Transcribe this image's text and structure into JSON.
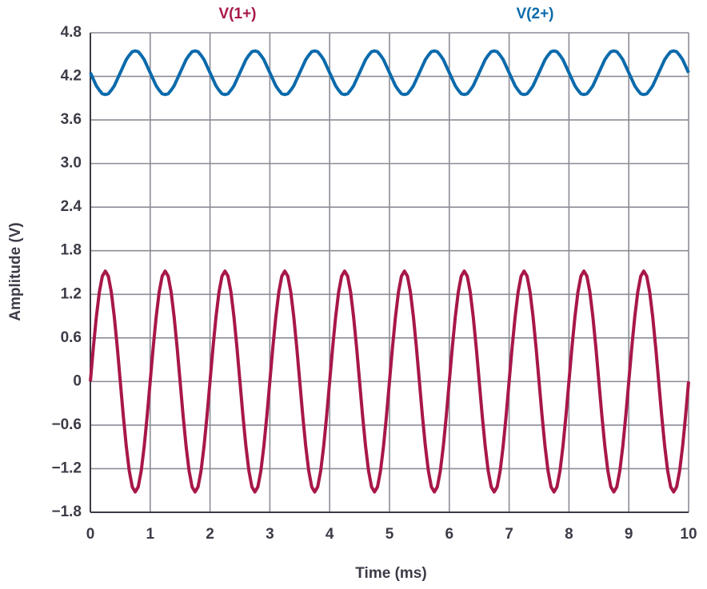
{
  "chart_data": {
    "type": "line",
    "xlabel": "Time (ms)",
    "ylabel": "Amplitude (V)",
    "x": [
      0,
      0.05,
      0.1,
      0.15,
      0.2,
      0.25,
      0.3,
      0.35,
      0.4,
      0.45,
      0.5,
      0.55,
      0.6,
      0.65,
      0.7,
      0.75,
      0.8,
      0.85,
      0.9,
      0.95,
      1,
      1.05,
      1.1,
      1.15,
      1.2,
      1.25,
      1.3,
      1.35,
      1.4,
      1.45,
      1.5,
      1.55,
      1.6,
      1.65,
      1.7,
      1.75,
      1.8,
      1.85,
      1.9,
      1.95,
      2,
      2.05,
      2.1,
      2.15,
      2.2,
      2.25,
      2.3,
      2.35,
      2.4,
      2.45,
      2.5,
      2.55,
      2.6,
      2.65,
      2.7,
      2.75,
      2.8,
      2.85,
      2.9,
      2.95,
      3,
      3.05,
      3.1,
      3.15,
      3.2,
      3.25,
      3.3,
      3.35,
      3.4,
      3.45,
      3.5,
      3.55,
      3.6,
      3.65,
      3.7,
      3.75,
      3.8,
      3.85,
      3.9,
      3.95,
      4,
      4.05,
      4.1,
      4.15,
      4.2,
      4.25,
      4.3,
      4.35,
      4.4,
      4.45,
      4.5,
      4.55,
      4.6,
      4.65,
      4.7,
      4.75,
      4.8,
      4.85,
      4.9,
      4.95,
      5,
      5.05,
      5.1,
      5.15,
      5.2,
      5.25,
      5.3,
      5.35,
      5.4,
      5.45,
      5.5,
      5.55,
      5.6,
      5.65,
      5.7,
      5.75,
      5.8,
      5.85,
      5.9,
      5.95,
      6,
      6.05,
      6.1,
      6.15,
      6.2,
      6.25,
      6.3,
      6.35,
      6.4,
      6.45,
      6.5,
      6.55,
      6.6,
      6.65,
      6.7,
      6.75,
      6.8,
      6.85,
      6.9,
      6.95,
      7,
      7.05,
      7.1,
      7.15,
      7.2,
      7.25,
      7.3,
      7.35,
      7.4,
      7.45,
      7.5,
      7.55,
      7.6,
      7.65,
      7.7,
      7.75,
      7.8,
      7.85,
      7.9,
      7.95,
      8,
      8.05,
      8.1,
      8.15,
      8.2,
      8.25,
      8.3,
      8.35,
      8.4,
      8.45,
      8.5,
      8.55,
      8.6,
      8.65,
      8.7,
      8.75,
      8.8,
      8.85,
      8.9,
      8.95,
      9,
      9.05,
      9.1,
      9.15,
      9.2,
      9.25,
      9.3,
      9.35,
      9.4,
      9.45,
      9.5,
      9.55,
      9.6,
      9.65,
      9.7,
      9.75,
      9.8,
      9.85,
      9.9,
      9.95,
      10
    ],
    "series": [
      {
        "name": "V(1+)",
        "color": "#a8174a",
        "values": [
          0,
          0.47,
          0.89,
          1.23,
          1.45,
          1.52,
          1.45,
          1.23,
          0.89,
          0.47,
          0,
          -0.47,
          -0.89,
          -1.23,
          -1.45,
          -1.52,
          -1.45,
          -1.23,
          -0.89,
          -0.47,
          0,
          0.47,
          0.89,
          1.23,
          1.45,
          1.52,
          1.45,
          1.23,
          0.89,
          0.47,
          0,
          -0.47,
          -0.89,
          -1.23,
          -1.45,
          -1.52,
          -1.45,
          -1.23,
          -0.89,
          -0.47,
          0,
          0.47,
          0.89,
          1.23,
          1.45,
          1.52,
          1.45,
          1.23,
          0.89,
          0.47,
          0,
          -0.47,
          -0.89,
          -1.23,
          -1.45,
          -1.52,
          -1.45,
          -1.23,
          -0.89,
          -0.47,
          0,
          0.47,
          0.89,
          1.23,
          1.45,
          1.52,
          1.45,
          1.23,
          0.89,
          0.47,
          0,
          -0.47,
          -0.89,
          -1.23,
          -1.45,
          -1.52,
          -1.45,
          -1.23,
          -0.89,
          -0.47,
          0,
          0.47,
          0.89,
          1.23,
          1.45,
          1.52,
          1.45,
          1.23,
          0.89,
          0.47,
          0,
          -0.47,
          -0.89,
          -1.23,
          -1.45,
          -1.52,
          -1.45,
          -1.23,
          -0.89,
          -0.47,
          0,
          0.47,
          0.89,
          1.23,
          1.45,
          1.52,
          1.45,
          1.23,
          0.89,
          0.47,
          0,
          -0.47,
          -0.89,
          -1.23,
          -1.45,
          -1.52,
          -1.45,
          -1.23,
          -0.89,
          -0.47,
          0,
          0.47,
          0.89,
          1.23,
          1.45,
          1.52,
          1.45,
          1.23,
          0.89,
          0.47,
          0,
          -0.47,
          -0.89,
          -1.23,
          -1.45,
          -1.52,
          -1.45,
          -1.23,
          -0.89,
          -0.47,
          0,
          0.47,
          0.89,
          1.23,
          1.45,
          1.52,
          1.45,
          1.23,
          0.89,
          0.47,
          0,
          -0.47,
          -0.89,
          -1.23,
          -1.45,
          -1.52,
          -1.45,
          -1.23,
          -0.89,
          -0.47,
          0,
          0.47,
          0.89,
          1.23,
          1.45,
          1.52,
          1.45,
          1.23,
          0.89,
          0.47,
          0,
          -0.47,
          -0.89,
          -1.23,
          -1.45,
          -1.52,
          -1.45,
          -1.23,
          -0.89,
          -0.47,
          0,
          0.47,
          0.89,
          1.23,
          1.45,
          1.52,
          1.45,
          1.23,
          0.89,
          0.47,
          0,
          -0.47,
          -0.89,
          -1.23,
          -1.45,
          -1.52,
          -1.45,
          -1.23,
          -0.89,
          -0.47,
          0
        ]
      },
      {
        "name": "V(2+)",
        "color": "#0b6aab",
        "values": [
          4.25,
          4.16,
          4.07,
          4.01,
          3.96,
          3.95,
          3.96,
          4.01,
          4.07,
          4.16,
          4.25,
          4.34,
          4.43,
          4.49,
          4.54,
          4.55,
          4.54,
          4.49,
          4.43,
          4.34,
          4.25,
          4.16,
          4.07,
          4.01,
          3.96,
          3.95,
          3.96,
          4.01,
          4.07,
          4.16,
          4.25,
          4.34,
          4.43,
          4.49,
          4.54,
          4.55,
          4.54,
          4.49,
          4.43,
          4.34,
          4.25,
          4.16,
          4.07,
          4.01,
          3.96,
          3.95,
          3.96,
          4.01,
          4.07,
          4.16,
          4.25,
          4.34,
          4.43,
          4.49,
          4.54,
          4.55,
          4.54,
          4.49,
          4.43,
          4.34,
          4.25,
          4.16,
          4.07,
          4.01,
          3.96,
          3.95,
          3.96,
          4.01,
          4.07,
          4.16,
          4.25,
          4.34,
          4.43,
          4.49,
          4.54,
          4.55,
          4.54,
          4.49,
          4.43,
          4.34,
          4.25,
          4.16,
          4.07,
          4.01,
          3.96,
          3.95,
          3.96,
          4.01,
          4.07,
          4.16,
          4.25,
          4.34,
          4.43,
          4.49,
          4.54,
          4.55,
          4.54,
          4.49,
          4.43,
          4.34,
          4.25,
          4.16,
          4.07,
          4.01,
          3.96,
          3.95,
          3.96,
          4.01,
          4.07,
          4.16,
          4.25,
          4.34,
          4.43,
          4.49,
          4.54,
          4.55,
          4.54,
          4.49,
          4.43,
          4.34,
          4.25,
          4.16,
          4.07,
          4.01,
          3.96,
          3.95,
          3.96,
          4.01,
          4.07,
          4.16,
          4.25,
          4.34,
          4.43,
          4.49,
          4.54,
          4.55,
          4.54,
          4.49,
          4.43,
          4.34,
          4.25,
          4.16,
          4.07,
          4.01,
          3.96,
          3.95,
          3.96,
          4.01,
          4.07,
          4.16,
          4.25,
          4.34,
          4.43,
          4.49,
          4.54,
          4.55,
          4.54,
          4.49,
          4.43,
          4.34,
          4.25,
          4.16,
          4.07,
          4.01,
          3.96,
          3.95,
          3.96,
          4.01,
          4.07,
          4.16,
          4.25,
          4.34,
          4.43,
          4.49,
          4.54,
          4.55,
          4.54,
          4.49,
          4.43,
          4.34,
          4.25,
          4.16,
          4.07,
          4.01,
          3.96,
          3.95,
          3.96,
          4.01,
          4.07,
          4.16,
          4.25,
          4.34,
          4.43,
          4.49,
          4.54,
          4.55,
          4.54,
          4.49,
          4.43,
          4.34,
          4.25
        ]
      }
    ],
    "xlim": [
      0,
      10
    ],
    "xticks": [
      0,
      1,
      2,
      3,
      4,
      5,
      6,
      7,
      8,
      9,
      10
    ],
    "ylim": [
      -1.8,
      4.8
    ],
    "yticks": [
      {
        "value": -1.8,
        "label": "−1.8"
      },
      {
        "value": -1.2,
        "label": "−1.2"
      },
      {
        "value": -0.6,
        "label": "−0.6"
      },
      0,
      0.6,
      1.2,
      1.8,
      2.4,
      {
        "value": 3.0,
        "label": "3.0"
      },
      3.6,
      4.2,
      4.8
    ],
    "grid": true
  }
}
